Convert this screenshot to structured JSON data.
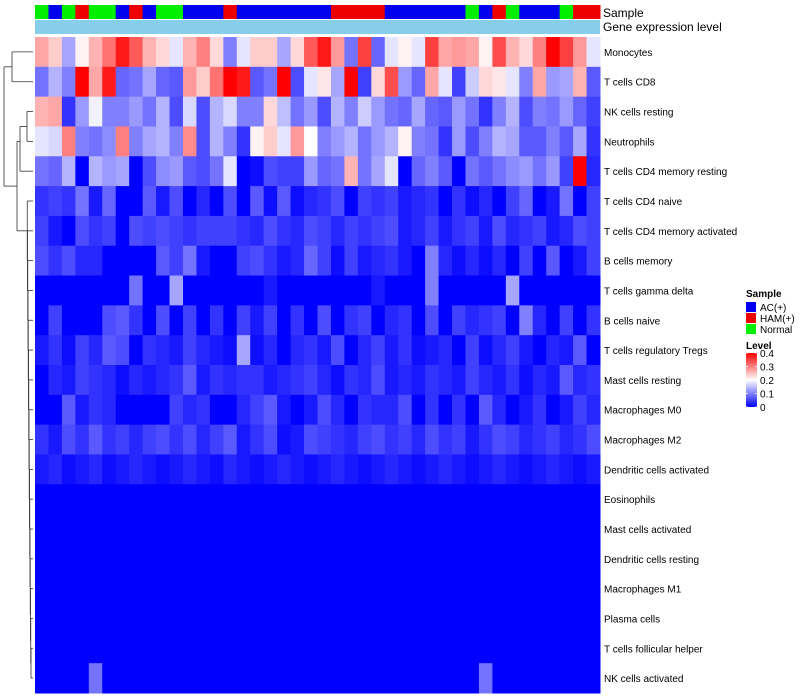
{
  "chart_data": {
    "type": "heatmap",
    "title": "",
    "annotation_tracks": [
      "Sample",
      "Gene expression level"
    ],
    "rows": [
      "Monocytes",
      "T cells CD8",
      "NK cells resting",
      "Neutrophils",
      "T cells CD4 memory resting",
      "T cells CD4 naive",
      "T cells CD4 memory activated",
      "B cells memory",
      "T cells gamma delta",
      "B cells naive",
      "T cells regulatory  Tregs",
      "Mast cells resting",
      "Macrophages M0",
      "Macrophages M2",
      "Dendritic cells activated",
      "Eosinophils",
      "Mast cells activated",
      "Dendritic cells resting",
      "Macrophages M1",
      "Plasma cells",
      "T cells follicular helper",
      "NK cells activated"
    ],
    "sample_groups": [
      "Normal",
      "AC(+)",
      "Normal",
      "HAM(+)",
      "Normal",
      "Normal",
      "AC(+)",
      "HAM(+)",
      "AC(+)",
      "Normal",
      "Normal",
      "AC(+)",
      "AC(+)",
      "AC(+)",
      "HAM(+)",
      "AC(+)",
      "AC(+)",
      "AC(+)",
      "AC(+)",
      "AC(+)",
      "AC(+)",
      "AC(+)",
      "HAM(+)",
      "HAM(+)",
      "HAM(+)",
      "HAM(+)",
      "AC(+)",
      "AC(+)",
      "AC(+)",
      "AC(+)",
      "AC(+)",
      "AC(+)",
      "Normal",
      "AC(+)",
      "HAM(+)",
      "Normal",
      "AC(+)",
      "AC(+)",
      "AC(+)",
      "Normal",
      "HAM(+)",
      "HAM(+)"
    ],
    "values": [
      [
        0.27,
        0.24,
        0.13,
        0.21,
        0.26,
        0.31,
        0.38,
        0.33,
        0.26,
        0.23,
        0.18,
        0.26,
        0.3,
        0.23,
        0.1,
        0.18,
        0.24,
        0.24,
        0.13,
        0.23,
        0.33,
        0.38,
        0.28,
        0.09,
        0.35,
        0.08,
        0.18,
        0.21,
        0.18,
        0.35,
        0.27,
        0.28,
        0.27,
        0.21,
        0.34,
        0.26,
        0.23,
        0.3,
        0.4,
        0.35,
        0.28,
        0.18
      ],
      [
        0.09,
        0.14,
        0.1,
        0.42,
        0.27,
        0.38,
        0.08,
        0.09,
        0.13,
        0.08,
        0.07,
        0.28,
        0.24,
        0.31,
        0.42,
        0.38,
        0.07,
        0.09,
        0.42,
        0.06,
        0.18,
        0.22,
        0.13,
        0.41,
        0.05,
        0.23,
        0.34,
        0.12,
        0.08,
        0.27,
        0.18,
        0.05,
        0.16,
        0.23,
        0.22,
        0.18,
        0.1,
        0.27,
        0.12,
        0.13,
        0.26,
        0.07
      ],
      [
        0.26,
        0.27,
        0.04,
        0.12,
        0.19,
        0.1,
        0.1,
        0.12,
        0.09,
        0.14,
        0.06,
        0.17,
        0.06,
        0.14,
        0.17,
        0.1,
        0.1,
        0.23,
        0.15,
        0.09,
        0.12,
        0.06,
        0.14,
        0.1,
        0.16,
        0.12,
        0.09,
        0.08,
        0.13,
        0.08,
        0.07,
        0.12,
        0.09,
        0.04,
        0.1,
        0.14,
        0.06,
        0.1,
        0.09,
        0.12,
        0.08,
        0.05
      ],
      [
        0.18,
        0.17,
        0.3,
        0.1,
        0.09,
        0.11,
        0.3,
        0.1,
        0.13,
        0.14,
        0.1,
        0.29,
        0.06,
        0.14,
        0.1,
        0.04,
        0.21,
        0.24,
        0.18,
        0.28,
        0.2,
        0.1,
        0.12,
        0.14,
        0.09,
        0.12,
        0.14,
        0.21,
        0.1,
        0.09,
        0.04,
        0.12,
        0.06,
        0.1,
        0.14,
        0.13,
        0.07,
        0.07,
        0.1,
        0.07,
        0.13,
        0.04
      ],
      [
        0.09,
        0.08,
        0.14,
        0.0,
        0.14,
        0.12,
        0.13,
        0.0,
        0.06,
        0.11,
        0.12,
        0.07,
        0.06,
        0.09,
        0.18,
        0.0,
        0.01,
        0.06,
        0.05,
        0.05,
        0.12,
        0.08,
        0.09,
        0.26,
        0.09,
        0.13,
        0.18,
        0.0,
        0.08,
        0.1,
        0.07,
        0.0,
        0.09,
        0.07,
        0.09,
        0.11,
        0.12,
        0.09,
        0.12,
        0.05,
        0.4,
        0.03
      ],
      [
        0.04,
        0.05,
        0.04,
        0.09,
        0.02,
        0.08,
        0.0,
        0.0,
        0.07,
        0.02,
        0.06,
        0.0,
        0.03,
        0.0,
        0.06,
        0.0,
        0.07,
        0.01,
        0.07,
        0.01,
        0.03,
        0.04,
        0.06,
        0.0,
        0.05,
        0.04,
        0.05,
        0.02,
        0.03,
        0.04,
        0.0,
        0.04,
        0.01,
        0.03,
        0.0,
        0.05,
        0.08,
        0.0,
        0.02,
        0.09,
        0.0,
        0.05
      ],
      [
        0.05,
        0.02,
        0.0,
        0.06,
        0.04,
        0.05,
        0.0,
        0.06,
        0.05,
        0.06,
        0.05,
        0.04,
        0.05,
        0.05,
        0.05,
        0.04,
        0.03,
        0.06,
        0.04,
        0.03,
        0.06,
        0.05,
        0.03,
        0.05,
        0.04,
        0.05,
        0.06,
        0.02,
        0.03,
        0.05,
        0.02,
        0.04,
        0.05,
        0.02,
        0.06,
        0.03,
        0.04,
        0.05,
        0.02,
        0.03,
        0.06,
        0.05
      ],
      [
        0.06,
        0.04,
        0.06,
        0.03,
        0.03,
        0.0,
        0.0,
        0.0,
        0.0,
        0.07,
        0.05,
        0.09,
        0.02,
        0.0,
        0.0,
        0.05,
        0.06,
        0.04,
        0.02,
        0.03,
        0.08,
        0.05,
        0.01,
        0.05,
        0.02,
        0.03,
        0.04,
        0.02,
        0.0,
        0.1,
        0.03,
        0.01,
        0.03,
        0.01,
        0.03,
        0.0,
        0.05,
        0.0,
        0.07,
        0.0,
        0.02,
        0.05
      ],
      [
        0.0,
        0.0,
        0.0,
        0.0,
        0.0,
        0.0,
        0.0,
        0.09,
        0.0,
        0.0,
        0.13,
        0.0,
        0.0,
        0.0,
        0.0,
        0.0,
        0.0,
        0.02,
        0.0,
        0.0,
        0.0,
        0.0,
        0.0,
        0.0,
        0.0,
        0.02,
        0.0,
        0.0,
        0.0,
        0.1,
        0.0,
        0.0,
        0.0,
        0.0,
        0.0,
        0.13,
        0.0,
        0.0,
        0.0,
        0.0,
        0.0,
        0.0
      ],
      [
        0.0,
        0.05,
        0.0,
        0.0,
        0.0,
        0.06,
        0.07,
        0.04,
        0.0,
        0.06,
        0.0,
        0.05,
        0.0,
        0.04,
        0.0,
        0.05,
        0.02,
        0.05,
        0.0,
        0.04,
        0.0,
        0.06,
        0.0,
        0.04,
        0.05,
        0.0,
        0.03,
        0.04,
        0.0,
        0.06,
        0.0,
        0.05,
        0.03,
        0.04,
        0.05,
        0.0,
        0.1,
        0.03,
        0.0,
        0.05,
        0.0,
        0.04
      ],
      [
        0.02,
        0.04,
        0.01,
        0.05,
        0.03,
        0.07,
        0.06,
        0.0,
        0.04,
        0.03,
        0.02,
        0.05,
        0.03,
        0.02,
        0.01,
        0.13,
        0.01,
        0.03,
        0.0,
        0.03,
        0.04,
        0.02,
        0.06,
        0.0,
        0.03,
        0.05,
        0.02,
        0.04,
        0.01,
        0.02,
        0.03,
        0.0,
        0.05,
        0.01,
        0.03,
        0.05,
        0.02,
        0.0,
        0.03,
        0.02,
        0.07,
        0.0
      ],
      [
        0.0,
        0.03,
        0.02,
        0.05,
        0.04,
        0.03,
        0.01,
        0.03,
        0.02,
        0.03,
        0.04,
        0.07,
        0.02,
        0.04,
        0.03,
        0.04,
        0.04,
        0.02,
        0.03,
        0.04,
        0.05,
        0.03,
        0.01,
        0.04,
        0.03,
        0.06,
        0.02,
        0.03,
        0.02,
        0.04,
        0.03,
        0.02,
        0.05,
        0.03,
        0.02,
        0.04,
        0.01,
        0.03,
        0.02,
        0.07,
        0.03,
        0.04
      ],
      [
        0.0,
        0.0,
        0.07,
        0.02,
        0.04,
        0.03,
        0.0,
        0.0,
        0.0,
        0.0,
        0.05,
        0.03,
        0.04,
        0.0,
        0.0,
        0.03,
        0.05,
        0.07,
        0.02,
        0.0,
        0.02,
        0.06,
        0.03,
        0.0,
        0.04,
        0.03,
        0.03,
        0.06,
        0.0,
        0.04,
        0.0,
        0.04,
        0.0,
        0.07,
        0.03,
        0.0,
        0.02,
        0.04,
        0.0,
        0.02,
        0.05,
        0.03
      ],
      [
        0.04,
        0.02,
        0.06,
        0.04,
        0.07,
        0.04,
        0.05,
        0.03,
        0.05,
        0.06,
        0.04,
        0.06,
        0.03,
        0.05,
        0.07,
        0.02,
        0.04,
        0.06,
        0.01,
        0.02,
        0.06,
        0.05,
        0.04,
        0.03,
        0.05,
        0.06,
        0.04,
        0.05,
        0.03,
        0.06,
        0.04,
        0.05,
        0.02,
        0.04,
        0.06,
        0.05,
        0.03,
        0.04,
        0.05,
        0.03,
        0.04,
        0.06
      ],
      [
        0.02,
        0.03,
        0.01,
        0.02,
        0.03,
        0.01,
        0.02,
        0.03,
        0.02,
        0.01,
        0.02,
        0.03,
        0.02,
        0.01,
        0.03,
        0.02,
        0.01,
        0.02,
        0.03,
        0.02,
        0.01,
        0.02,
        0.03,
        0.02,
        0.01,
        0.02,
        0.03,
        0.02,
        0.01,
        0.02,
        0.03,
        0.02,
        0.01,
        0.02,
        0.03,
        0.02,
        0.01,
        0.02,
        0.03,
        0.02,
        0.01,
        0.02
      ],
      [
        0.0,
        0.0,
        0.0,
        0.0,
        0.0,
        0.0,
        0.0,
        0.0,
        0.0,
        0.0,
        0.0,
        0.0,
        0.0,
        0.0,
        0.0,
        0.0,
        0.0,
        0.0,
        0.0,
        0.0,
        0.0,
        0.0,
        0.0,
        0.0,
        0.0,
        0.0,
        0.0,
        0.0,
        0.0,
        0.0,
        0.0,
        0.0,
        0.0,
        0.0,
        0.0,
        0.0,
        0.0,
        0.0,
        0.0,
        0.0,
        0.0,
        0.0
      ],
      [
        0.0,
        0.0,
        0.0,
        0.0,
        0.0,
        0.0,
        0.0,
        0.0,
        0.0,
        0.0,
        0.0,
        0.0,
        0.0,
        0.0,
        0.0,
        0.0,
        0.0,
        0.0,
        0.0,
        0.0,
        0.0,
        0.0,
        0.0,
        0.0,
        0.0,
        0.0,
        0.0,
        0.0,
        0.0,
        0.0,
        0.0,
        0.0,
        0.0,
        0.0,
        0.0,
        0.0,
        0.0,
        0.0,
        0.0,
        0.0,
        0.0,
        0.0
      ],
      [
        0.0,
        0.0,
        0.0,
        0.0,
        0.0,
        0.0,
        0.0,
        0.0,
        0.0,
        0.0,
        0.0,
        0.0,
        0.0,
        0.0,
        0.0,
        0.0,
        0.0,
        0.0,
        0.0,
        0.0,
        0.0,
        0.0,
        0.0,
        0.0,
        0.0,
        0.0,
        0.0,
        0.0,
        0.0,
        0.0,
        0.0,
        0.0,
        0.0,
        0.0,
        0.0,
        0.0,
        0.0,
        0.0,
        0.0,
        0.0,
        0.0,
        0.0
      ],
      [
        0.0,
        0.0,
        0.0,
        0.0,
        0.0,
        0.0,
        0.0,
        0.0,
        0.0,
        0.0,
        0.0,
        0.0,
        0.0,
        0.0,
        0.0,
        0.0,
        0.0,
        0.0,
        0.0,
        0.0,
        0.0,
        0.0,
        0.0,
        0.0,
        0.0,
        0.0,
        0.0,
        0.0,
        0.0,
        0.0,
        0.0,
        0.0,
        0.0,
        0.0,
        0.0,
        0.0,
        0.0,
        0.0,
        0.0,
        0.0,
        0.0,
        0.0
      ],
      [
        0.0,
        0.0,
        0.0,
        0.0,
        0.0,
        0.0,
        0.0,
        0.0,
        0.0,
        0.0,
        0.0,
        0.0,
        0.0,
        0.0,
        0.0,
        0.0,
        0.0,
        0.0,
        0.0,
        0.0,
        0.0,
        0.0,
        0.0,
        0.0,
        0.0,
        0.0,
        0.0,
        0.0,
        0.0,
        0.0,
        0.0,
        0.0,
        0.0,
        0.0,
        0.0,
        0.0,
        0.0,
        0.0,
        0.0,
        0.0,
        0.0,
        0.0
      ],
      [
        0.0,
        0.0,
        0.0,
        0.0,
        0.0,
        0.0,
        0.0,
        0.0,
        0.0,
        0.0,
        0.0,
        0.0,
        0.0,
        0.0,
        0.0,
        0.0,
        0.0,
        0.0,
        0.0,
        0.0,
        0.0,
        0.0,
        0.0,
        0.0,
        0.0,
        0.0,
        0.0,
        0.0,
        0.0,
        0.0,
        0.0,
        0.0,
        0.0,
        0.0,
        0.0,
        0.0,
        0.0,
        0.0,
        0.0,
        0.0,
        0.0,
        0.0
      ],
      [
        0.0,
        0.0,
        0.0,
        0.0,
        0.09,
        0.0,
        0.0,
        0.0,
        0.0,
        0.0,
        0.0,
        0.0,
        0.0,
        0.0,
        0.0,
        0.0,
        0.0,
        0.0,
        0.0,
        0.0,
        0.0,
        0.0,
        0.0,
        0.0,
        0.0,
        0.0,
        0.0,
        0.0,
        0.0,
        0.0,
        0.0,
        0.0,
        0.0,
        0.09,
        0.0,
        0.0,
        0.0,
        0.0,
        0.0,
        0.0,
        0.0,
        0.0
      ]
    ],
    "color_scale": {
      "low": "#0000ff",
      "mid": "#ffffff",
      "high": "#ff0000",
      "range": [
        0,
        0.4
      ]
    },
    "legends": {
      "sample": {
        "title": "Sample",
        "entries": [
          {
            "label": "AC(+)",
            "color": "#0000ee"
          },
          {
            "label": "HAM(+)",
            "color": "#ee0000"
          },
          {
            "label": "Normal",
            "color": "#00ee00"
          }
        ]
      },
      "level": {
        "title": "Level",
        "ticks": [
          "0.4",
          "0.3",
          "0.2",
          "0.1",
          "0"
        ]
      }
    },
    "gene_expression_color": "#87ceeb"
  }
}
